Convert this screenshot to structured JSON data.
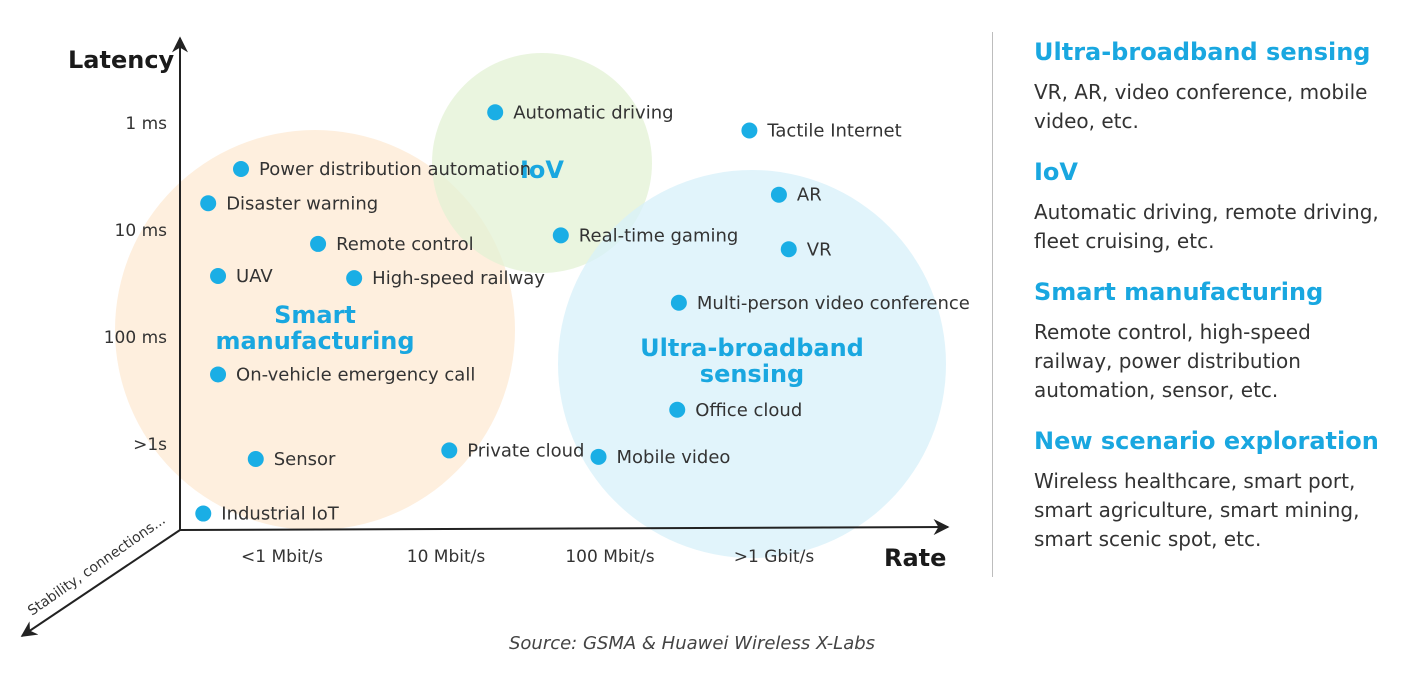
{
  "colors": {
    "accent": "#19a7e0",
    "point": "#1aaee5",
    "smart_fill": "#fde9d3",
    "iov_fill": "#e3f2d4",
    "broadband_fill": "#d7f0fa",
    "text": "#333333"
  },
  "chart_data": {
    "type": "scatter",
    "xlabel": "Rate",
    "ylabel": "Latency",
    "zlabel": "Stability, connections...",
    "x_ticks": [
      "<1 Mbit/s",
      "10 Mbit/s",
      "100 Mbit/s",
      ">1 Gbit/s"
    ],
    "y_ticks": [
      "1 ms",
      "10 ms",
      "100 ms",
      ">1s"
    ],
    "x_note": "x in log10(Mbit/s): 0 = <1 Mbit/s, 3 = >1 Gbit/s",
    "y_note": "y in log10(ms): 0 = 1 ms, 3 = >1s",
    "points": [
      {
        "label": "Automatic driving",
        "x": 1.3,
        "y": -0.1
      },
      {
        "label": "Tactile Internet",
        "x": 2.85,
        "y": 0.07
      },
      {
        "label": "Power distribution automation",
        "x": -0.25,
        "y": 0.43
      },
      {
        "label": "Disaster warning",
        "x": -0.45,
        "y": 0.75
      },
      {
        "label": "AR",
        "x": 3.03,
        "y": 0.67
      },
      {
        "label": "Remote control",
        "x": 0.22,
        "y": 1.13
      },
      {
        "label": "Real-time gaming",
        "x": 1.7,
        "y": 1.05
      },
      {
        "label": "VR",
        "x": 3.09,
        "y": 1.18
      },
      {
        "label": "UAV",
        "x": -0.39,
        "y": 1.43
      },
      {
        "label": "High-speed railway",
        "x": 0.44,
        "y": 1.45
      },
      {
        "label": "Multi-person video conference",
        "x": 2.42,
        "y": 1.68
      },
      {
        "label": "On-vehicle emergency call",
        "x": -0.39,
        "y": 2.35
      },
      {
        "label": "Office cloud",
        "x": 2.41,
        "y": 2.68
      },
      {
        "label": "Private cloud",
        "x": 1.02,
        "y": 3.06
      },
      {
        "label": "Mobile video",
        "x": 1.93,
        "y": 3.12
      },
      {
        "label": "Sensor",
        "x": -0.16,
        "y": 3.14
      },
      {
        "label": "Industrial IoT",
        "x": -0.48,
        "y": 3.65
      }
    ],
    "clusters": [
      {
        "name": "smart",
        "label_lines": [
          "Smart",
          "manufacturing"
        ],
        "color_key": "smart_fill"
      },
      {
        "name": "iov",
        "label_lines": [
          "IoV"
        ],
        "color_key": "iov_fill"
      },
      {
        "name": "broadband",
        "label_lines": [
          "Ultra-broadband",
          "sensing"
        ],
        "color_key": "broadband_fill"
      }
    ],
    "source": "Source: GSMA & Huawei Wireless X-Labs"
  },
  "legend": [
    {
      "title": "Ultra-broadband sensing",
      "desc": "VR, AR, video conference, mobile video, etc."
    },
    {
      "title": "IoV",
      "desc": "Automatic driving, remote driving, fleet cruising, etc."
    },
    {
      "title": "Smart manufacturing",
      "desc": "Remote control, high-speed railway, power distribution automation, sensor, etc."
    },
    {
      "title": "New scenario exploration",
      "desc": "Wireless healthcare, smart port, smart agriculture, smart mining, smart scenic spot, etc."
    }
  ]
}
